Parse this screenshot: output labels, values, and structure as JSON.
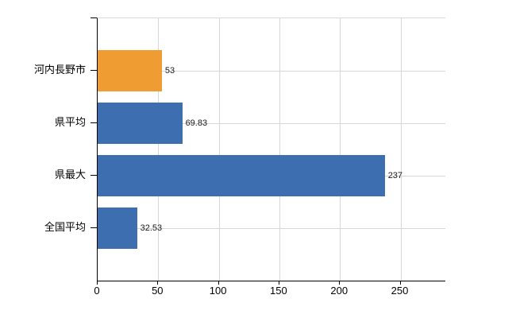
{
  "chart_data": {
    "type": "bar",
    "orientation": "horizontal",
    "title": "",
    "categories": [
      "河内長野市",
      "県平均",
      "県最大",
      "全国平均"
    ],
    "values": [
      53,
      69.83,
      237,
      32.53
    ],
    "value_labels": [
      "53",
      "69.83",
      "237",
      "32.53"
    ],
    "bar_colors": [
      "#EF9C33",
      "#3C6EB0",
      "#3C6EB0",
      "#3C6EB0"
    ],
    "x_ticks": [
      0,
      50,
      100,
      150,
      200,
      250
    ],
    "x_tick_labels": [
      "0",
      "50",
      "100",
      "150",
      "200",
      "250"
    ],
    "xlim": [
      0,
      287
    ],
    "grid": true,
    "legend": false,
    "colors": {
      "axis": "#000000",
      "grid": "#D6D6D6",
      "text": "#000000",
      "highlight_bar": "#EF9C33",
      "default_bar": "#3C6EB0"
    }
  }
}
